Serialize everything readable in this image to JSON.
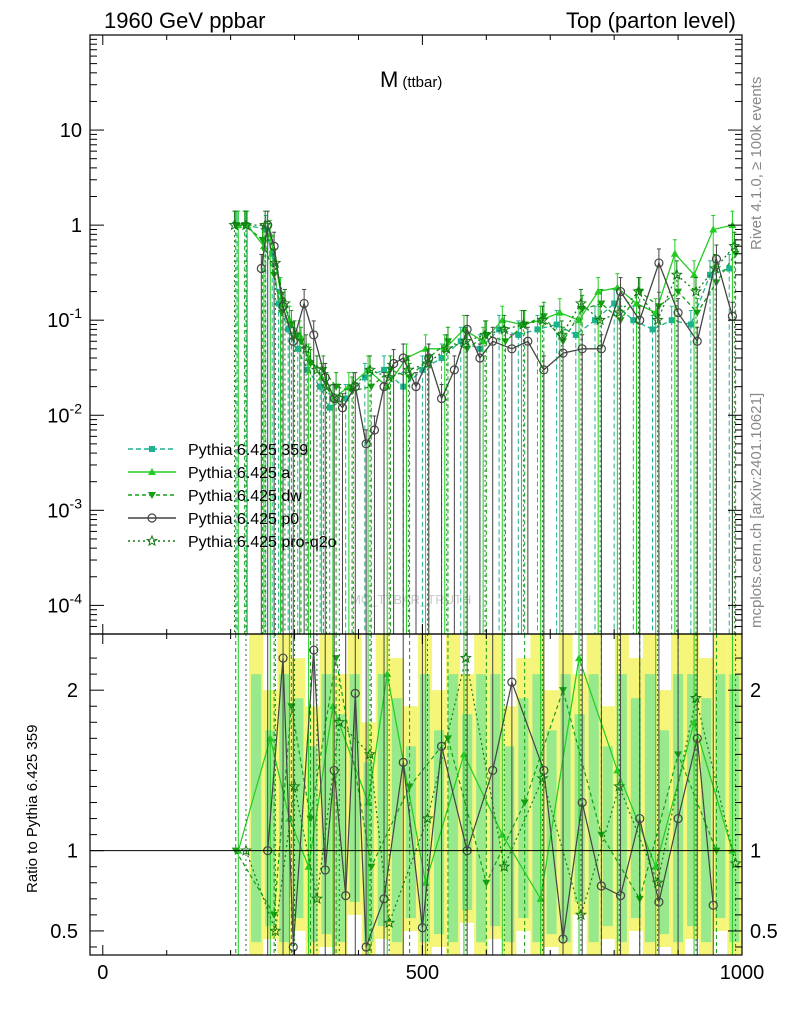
{
  "header": {
    "left": "1960 GeV ppbar",
    "right": "Top (parton level)",
    "side_rivet": "Rivet 4.1.0, ≥ 100k events",
    "side_mcplots": "mcplots.cern.ch [arXiv:2401.10621]"
  },
  "chart_data": {
    "type": "line",
    "observable_main": "M",
    "observable_sub": "(ttbar)",
    "watermark": "MC_TTBAR_TRUTH",
    "xlim": [
      -20,
      1000
    ],
    "ylim_main": [
      5e-05,
      100
    ],
    "ylog_main": true,
    "ylabel_ratio": "Ratio to Pythia 6.425 359",
    "ylim_ratio": [
      0.35,
      2.35
    ],
    "x_ticks": [
      "0",
      "500",
      "1000"
    ],
    "y_ticks_main": [
      "10",
      "1",
      "10^-1",
      "10^-2",
      "10^-3",
      "10^-4"
    ],
    "y_ticks_ratio": [
      "2",
      "1",
      "0.5"
    ],
    "legend_position": "lower-left",
    "series": [
      {
        "name": "Pythia 6.425 359",
        "color": "#1db38f",
        "marker": "square",
        "dash": "5,3",
        "x": [
          210,
          225,
          255,
          265,
          275,
          290,
          305,
          320,
          340,
          355,
          380,
          410,
          440,
          470,
          500,
          530,
          560,
          590,
          620,
          650,
          680,
          710,
          740,
          770,
          800,
          830,
          860,
          890,
          920,
          950,
          980
        ],
        "values": [
          1.0,
          1.0,
          0.9,
          0.5,
          0.15,
          0.08,
          0.05,
          0.03,
          0.02,
          0.012,
          0.015,
          0.025,
          0.03,
          0.02,
          0.03,
          0.04,
          0.06,
          0.05,
          0.08,
          0.07,
          0.08,
          0.09,
          0.07,
          0.1,
          0.15,
          0.1,
          0.08,
          0.1,
          0.09,
          0.3,
          0.35
        ]
      },
      {
        "name": "Pythia 6.425 a",
        "color": "#22cc22",
        "marker": "triangle-up",
        "dash": "",
        "x": [
          212,
          226,
          252,
          262,
          278,
          292,
          308,
          322,
          342,
          360,
          385,
          415,
          445,
          475,
          505,
          535,
          565,
          595,
          625,
          655,
          685,
          715,
          745,
          775,
          805,
          835,
          865,
          895,
          925,
          955,
          985
        ],
        "values": [
          1.0,
          1.0,
          0.6,
          0.8,
          0.2,
          0.1,
          0.07,
          0.04,
          0.025,
          0.015,
          0.02,
          0.03,
          0.02,
          0.04,
          0.05,
          0.05,
          0.08,
          0.06,
          0.1,
          0.09,
          0.1,
          0.12,
          0.1,
          0.2,
          0.22,
          0.15,
          0.12,
          0.5,
          0.3,
          0.9,
          1.0
        ]
      },
      {
        "name": "Pythia 6.425 dw",
        "color": "#12a012",
        "marker": "triangle-down",
        "dash": "4,3",
        "x": [
          208,
          222,
          250,
          268,
          280,
          295,
          310,
          325,
          345,
          365,
          390,
          420,
          450,
          480,
          510,
          540,
          570,
          600,
          630,
          660,
          690,
          720,
          750,
          780,
          810,
          840,
          870,
          900,
          930,
          960,
          990
        ],
        "values": [
          1.0,
          1.0,
          0.7,
          0.3,
          0.12,
          0.09,
          0.06,
          0.035,
          0.03,
          0.02,
          0.018,
          0.02,
          0.03,
          0.025,
          0.04,
          0.06,
          0.05,
          0.07,
          0.06,
          0.09,
          0.11,
          0.06,
          0.13,
          0.15,
          0.1,
          0.2,
          0.14,
          0.2,
          0.12,
          0.25,
          0.5
        ]
      },
      {
        "name": "Pythia 6.425 p0",
        "color": "#444444",
        "marker": "circle-open",
        "dash": "",
        "x": [
          248,
          258,
          268,
          282,
          298,
          315,
          330,
          348,
          362,
          375,
          395,
          412,
          425,
          440,
          455,
          470,
          490,
          510,
          530,
          550,
          570,
          590,
          610,
          640,
          665,
          690,
          720,
          750,
          780,
          810,
          840,
          870,
          900,
          930,
          960,
          985
        ],
        "values": [
          0.35,
          1.0,
          0.6,
          0.14,
          0.06,
          0.15,
          0.07,
          0.025,
          0.015,
          0.012,
          0.02,
          0.005,
          0.007,
          0.02,
          0.035,
          0.04,
          0.02,
          0.04,
          0.015,
          0.03,
          0.08,
          0.04,
          0.06,
          0.05,
          0.06,
          0.03,
          0.045,
          0.05,
          0.05,
          0.2,
          0.1,
          0.4,
          0.12,
          0.06,
          0.44,
          0.11
        ]
      },
      {
        "name": "Pythia 6.425 pro-q2o",
        "color": "#157a15",
        "marker": "star-open",
        "dash": "2,3",
        "x": [
          206,
          224,
          254,
          270,
          285,
          300,
          318,
          335,
          350,
          370,
          392,
          418,
          448,
          478,
          508,
          538,
          568,
          598,
          628,
          658,
          688,
          718,
          748,
          778,
          808,
          838,
          868,
          898,
          928,
          958,
          988
        ],
        "values": [
          1.0,
          1.0,
          1.0,
          0.4,
          0.15,
          0.07,
          0.05,
          0.03,
          0.02,
          0.015,
          0.02,
          0.03,
          0.025,
          0.03,
          0.035,
          0.05,
          0.06,
          0.07,
          0.08,
          0.09,
          0.1,
          0.07,
          0.15,
          0.1,
          0.12,
          0.2,
          0.1,
          0.3,
          0.2,
          0.35,
          0.6
        ]
      }
    ],
    "ratio_series": [
      {
        "name": "Pythia 6.425 a",
        "x": [
          212,
          262,
          292,
          322,
          360,
          415,
          445,
          505,
          565,
          625,
          685,
          745,
          805,
          865,
          925,
          985
        ],
        "values": [
          1.0,
          1.7,
          1.2,
          0.9,
          1.9,
          1.3,
          2.1,
          0.8,
          1.6,
          1.1,
          0.7,
          2.2,
          1.5,
          0.9,
          1.8,
          1.0
        ]
      },
      {
        "name": "Pythia 6.425 dw",
        "x": [
          208,
          268,
          295,
          325,
          365,
          420,
          480,
          540,
          600,
          660,
          720,
          780,
          840,
          900,
          960
        ],
        "values": [
          1.0,
          0.6,
          1.9,
          1.2,
          2.2,
          0.9,
          1.4,
          1.7,
          0.8,
          1.3,
          2.0,
          1.1,
          0.7,
          1.6,
          1.0
        ]
      },
      {
        "name": "Pythia 6.425 p0",
        "x": [
          258,
          282,
          298,
          330,
          348,
          362,
          380,
          395,
          412,
          440,
          470,
          500,
          530,
          570,
          610,
          640,
          690,
          720,
          750,
          780,
          810,
          840,
          870,
          900,
          930,
          955
        ],
        "values": [
          1.0,
          2.2,
          0.4,
          2.25,
          0.88,
          1.5,
          0.72,
          1.98,
          0.4,
          0.7,
          1.55,
          0.52,
          1.65,
          1.0,
          1.5,
          2.05,
          1.5,
          0.45,
          1.3,
          0.78,
          0.72,
          1.2,
          0.68,
          1.2,
          1.7,
          0.66
        ]
      },
      {
        "name": "Pythia 6.425 pro-q2o",
        "x": [
          224,
          270,
          300,
          335,
          370,
          418,
          448,
          508,
          568,
          628,
          688,
          748,
          808,
          868,
          928,
          990
        ],
        "values": [
          1.0,
          0.5,
          1.4,
          0.7,
          1.8,
          1.6,
          0.55,
          1.2,
          2.2,
          0.9,
          1.45,
          0.6,
          1.4,
          0.8,
          1.95,
          0.92
        ]
      }
    ],
    "ratio_band": {
      "x": [
        240,
        262,
        284,
        306,
        328,
        350,
        372,
        394,
        416,
        438,
        460,
        482,
        504,
        526,
        548,
        570,
        592,
        614,
        636,
        658,
        680,
        702,
        724,
        746,
        768,
        790,
        812,
        834,
        856,
        878,
        900,
        922,
        944,
        966,
        988
      ],
      "high": [
        2.35,
        2.0,
        2.35,
        2.2,
        1.9,
        2.35,
        2.1,
        2.35,
        1.8,
        2.35,
        2.2,
        1.9,
        2.35,
        2.0,
        2.35,
        2.1,
        2.35,
        2.35,
        1.9,
        2.2,
        2.35,
        2.0,
        2.35,
        2.1,
        2.35,
        1.9,
        2.35,
        2.2,
        2.35,
        2.0,
        2.35,
        2.35,
        2.2,
        2.35,
        2.35
      ],
      "low": [
        0.35,
        0.45,
        0.35,
        0.5,
        0.35,
        0.4,
        0.35,
        0.6,
        0.35,
        0.45,
        0.35,
        0.5,
        0.35,
        0.4,
        0.35,
        0.55,
        0.35,
        0.45,
        0.35,
        0.5,
        0.35,
        0.4,
        0.35,
        0.6,
        0.35,
        0.45,
        0.35,
        0.5,
        0.35,
        0.4,
        0.35,
        0.45,
        0.35,
        0.5,
        0.35
      ]
    }
  }
}
